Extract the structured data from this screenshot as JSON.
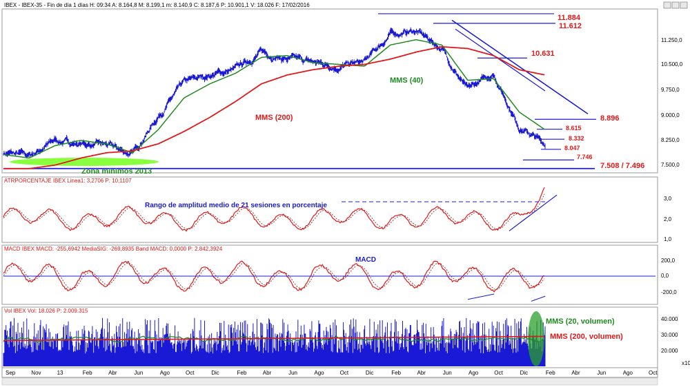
{
  "window": {
    "header": "IBEX - IBEX-35 - Fin de día 1 días H: 09:34 A: 8.164,8 M: 8.199,1 m: 8.140,9 C: 8.187,6 P: 10.901,1 V: 18.026 F: 17/02/2016"
  },
  "colors": {
    "price": "#1a1ad6",
    "mms40": "#1f8a1f",
    "mms200": "#e01818",
    "guide": "#1a1ad6",
    "zone": "#7cff2a",
    "label_red": "#e01818",
    "label_blue": "#1a1acc",
    "label_green": "#1f8a1f"
  },
  "panels": {
    "price": {
      "yticks": [
        "11.250,0",
        "10.500,0",
        "9.750,0",
        "9.000,0",
        "8.250,0",
        "7.500,0"
      ],
      "annotations": {
        "mms200": "MMS (200)",
        "mms40": "MMS (40)",
        "zona": "Zona mínimos 2013",
        "l11884": "11.884",
        "l11612": "11.612",
        "l10631": "10.631",
        "l8896": "8.896",
        "l8615": "8.615",
        "l8332": "8.332",
        "l8047": "8.047",
        "l7746": "7.746",
        "l7508": "7.508 / 7.496"
      }
    },
    "atr": {
      "header": "ATRPORCENTAJE IBEX Linea1: 3,2706 P: 10,1107",
      "annotation": "Rango de amplitud medio de 21 sesiones en porcentaje",
      "yticks": [
        "3,0",
        "2,0",
        "1,0"
      ]
    },
    "macd": {
      "header": "MACD IBEX MACD: -255,6942 MediaSIG: -269,8935 Band MACD: 0,0000 P: 2.842,3924",
      "annotation": "MACD",
      "yticks": [
        "200,0",
        "0,0",
        "-200,0"
      ]
    },
    "vol": {
      "header": "Vol IBEX Vol: 18.026 P: 2.009.315",
      "annotations": {
        "mms20": "MMS (20, volumen)",
        "mms200": "MMS (200, volumen)"
      },
      "yticks": [
        "40.000",
        "30.000",
        "20.000"
      ],
      "unit": "x10"
    }
  },
  "xaxis": {
    "labels": [
      "Sep",
      "Nov",
      "13",
      "Feb",
      "Abr",
      "Jun",
      "Ago",
      "Oct",
      "Dic",
      "Feb",
      "Abr",
      "Jun",
      "Ago",
      "Oct",
      "Dic",
      "Feb",
      "Abr",
      "Jun",
      "Ago",
      "Oct",
      "Dic",
      "Feb",
      "Abr",
      "Jun",
      "Ago",
      "Oct"
    ]
  },
  "chart_data": {
    "type": "line",
    "title": "IBEX - IBEX-35 - Fin de día 1 días",
    "series": [
      {
        "name": "IBEX-35",
        "x": [
          "2012-09",
          "2012-11",
          "2013-01",
          "2013-03",
          "2013-05",
          "2013-07",
          "2013-09",
          "2013-11",
          "2014-01",
          "2014-03",
          "2014-05",
          "2014-07",
          "2014-09",
          "2014-11",
          "2015-01",
          "2015-03",
          "2015-05",
          "2015-07",
          "2015-09",
          "2015-11",
          "2016-01",
          "2016-02"
        ],
        "values": [
          7950,
          7850,
          8300,
          8200,
          8150,
          7900,
          9000,
          9900,
          10150,
          10300,
          10800,
          10600,
          10500,
          10400,
          10500,
          11300,
          11400,
          10900,
          9700,
          10200,
          8700,
          8188
        ]
      },
      {
        "name": "MMS (40)",
        "values": [
          7900,
          7800,
          8150,
          8300,
          8200,
          7950,
          8600,
          9500,
          9900,
          10200,
          10650,
          10700,
          10500,
          10450,
          10400,
          11000,
          11150,
          11000,
          10000,
          10050,
          9100,
          8600
        ]
      },
      {
        "name": "MMS (200)",
        "values": [
          7500,
          7500,
          7600,
          7800,
          7950,
          8000,
          8200,
          8550,
          8950,
          9400,
          9900,
          10150,
          10300,
          10400,
          10450,
          10600,
          10800,
          10950,
          10900,
          10700,
          10300,
          10150
        ]
      }
    ],
    "ylim": [
      7400,
      12000
    ],
    "levels": [
      11884,
      11612,
      10631,
      8896,
      8615,
      8332,
      8047,
      7746,
      7508,
      7496
    ],
    "atr_percent": {
      "ylim": [
        0.9,
        3.6
      ],
      "last": 3.2706
    },
    "macd": {
      "ylim": [
        -300,
        300
      ],
      "last": -255.6942,
      "signal": -269.8935
    },
    "volume": {
      "ylim": [
        10000,
        45000
      ],
      "last": 18026
    }
  }
}
